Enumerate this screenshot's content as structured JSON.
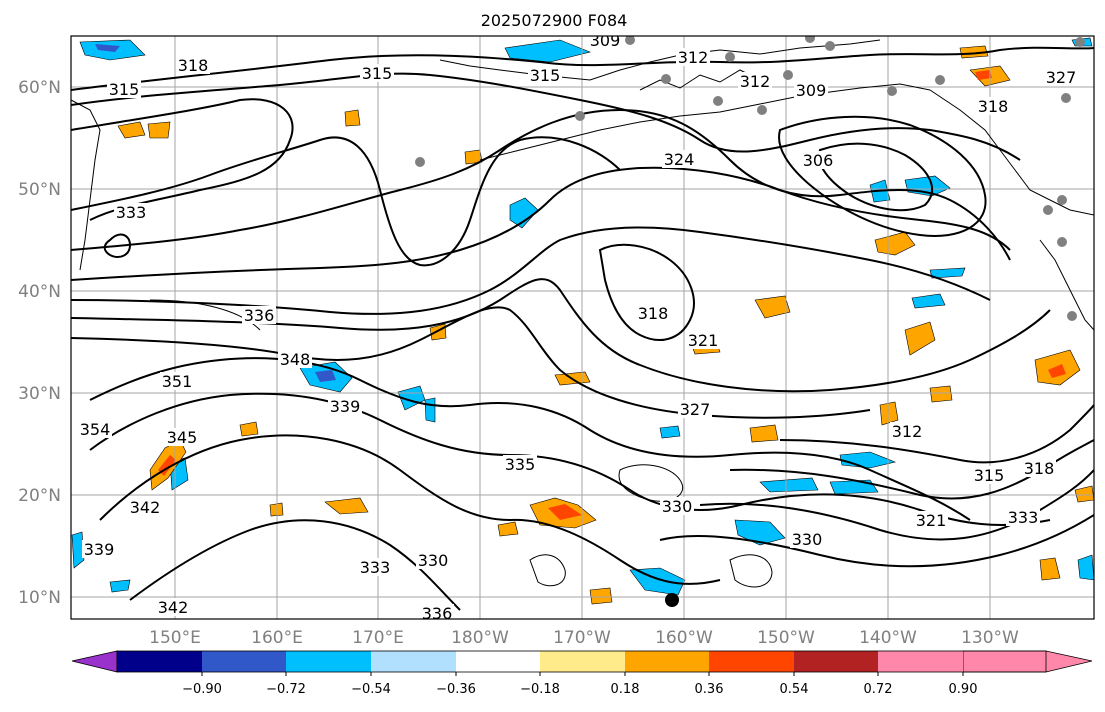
{
  "title": "2025072900 F084",
  "map": {
    "lat_labels": [
      "60°N",
      "50°N",
      "40°N",
      "30°N",
      "20°N",
      "10°N"
    ],
    "lon_labels": [
      "150°E",
      "160°E",
      "170°E",
      "180°W",
      "170°W",
      "160°W",
      "150°W",
      "140°W",
      "130°W"
    ],
    "contour_labels": [
      "309",
      "312",
      "312",
      "309",
      "315",
      "315",
      "318",
      "315",
      "327",
      "318",
      "324",
      "306",
      "333",
      "336",
      "318",
      "321",
      "348",
      "351",
      "339",
      "327",
      "345",
      "335",
      "330",
      "342",
      "315",
      "318",
      "312",
      "339",
      "330",
      "336",
      "321",
      "333",
      "330",
      "342",
      "354",
      "333"
    ]
  },
  "colorbar": {
    "tick_labels": [
      "−0.90",
      "−0.72",
      "−0.54",
      "−0.36",
      "−0.18",
      "0.18",
      "0.36",
      "0.54",
      "0.72",
      "0.90"
    ],
    "colors": [
      "#9932cc",
      "#00008b",
      "#3158c9",
      "#00bfff",
      "#b0e0fe",
      "#ffffff",
      "#ffeb8a",
      "#ffa500",
      "#ff4500",
      "#b22222",
      "#ff88aa"
    ]
  }
}
